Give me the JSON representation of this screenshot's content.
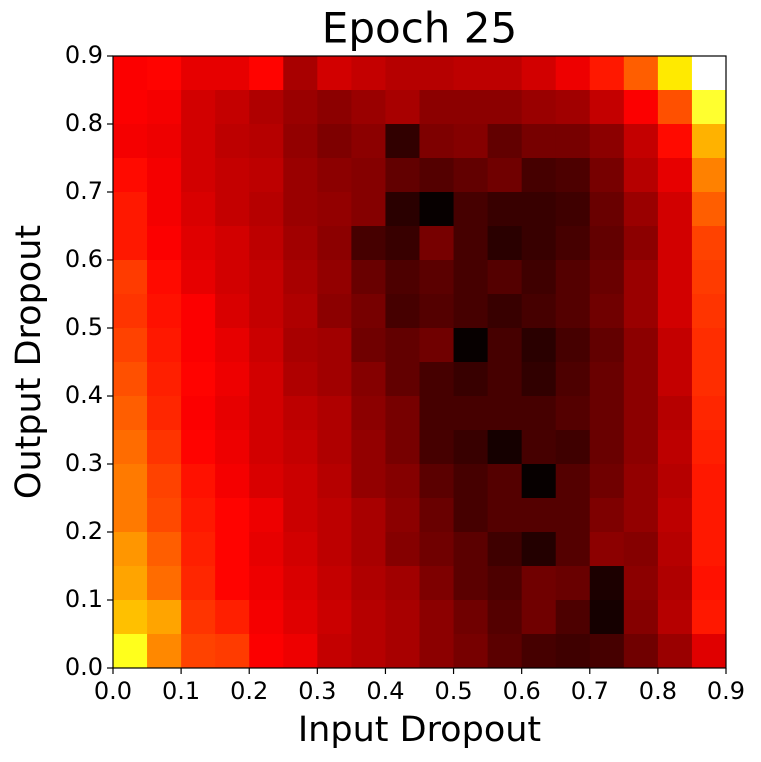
{
  "chart_data": {
    "type": "heatmap",
    "title": "Epoch 25",
    "xlabel": "Input Dropout",
    "ylabel": "Output Dropout",
    "colormap": "hot",
    "xlim": [
      0,
      0.9
    ],
    "ylim": [
      0,
      0.9
    ],
    "xticks": [
      {
        "value": 0,
        "label": "0.0"
      },
      0.1,
      0.2,
      0.3,
      0.4,
      0.5,
      0.6,
      0.7,
      0.8,
      0.9
    ],
    "yticks": [
      {
        "value": 0,
        "label": "0.0"
      },
      0.1,
      0.2,
      0.3,
      0.4,
      0.5,
      0.6,
      0.7,
      0.8,
      0.9
    ],
    "z": [
      [
        0.36,
        0.37,
        0.33,
        0.33,
        0.37,
        0.24,
        0.3,
        0.28,
        0.26,
        0.26,
        0.27,
        0.27,
        0.3,
        0.34,
        0.4,
        0.5,
        0.7,
        1.0
      ],
      [
        0.36,
        0.35,
        0.3,
        0.28,
        0.25,
        0.22,
        0.2,
        0.22,
        0.24,
        0.2,
        0.2,
        0.2,
        0.22,
        0.23,
        0.28,
        0.36,
        0.48,
        0.78
      ],
      [
        0.35,
        0.34,
        0.3,
        0.27,
        0.26,
        0.21,
        0.18,
        0.2,
        0.07,
        0.18,
        0.19,
        0.14,
        0.17,
        0.17,
        0.2,
        0.28,
        0.38,
        0.62
      ],
      [
        0.38,
        0.35,
        0.3,
        0.28,
        0.27,
        0.22,
        0.2,
        0.19,
        0.14,
        0.12,
        0.14,
        0.16,
        0.1,
        0.11,
        0.17,
        0.26,
        0.33,
        0.55
      ],
      [
        0.4,
        0.35,
        0.31,
        0.28,
        0.26,
        0.22,
        0.21,
        0.19,
        0.06,
        0.01,
        0.1,
        0.08,
        0.08,
        0.09,
        0.15,
        0.22,
        0.3,
        0.5
      ],
      [
        0.4,
        0.36,
        0.32,
        0.3,
        0.27,
        0.23,
        0.2,
        0.1,
        0.08,
        0.17,
        0.1,
        0.06,
        0.08,
        0.1,
        0.14,
        0.2,
        0.3,
        0.46
      ],
      [
        0.45,
        0.38,
        0.33,
        0.3,
        0.28,
        0.24,
        0.21,
        0.15,
        0.11,
        0.13,
        0.1,
        0.12,
        0.09,
        0.12,
        0.15,
        0.22,
        0.3,
        0.45
      ],
      [
        0.44,
        0.39,
        0.36,
        0.31,
        0.28,
        0.25,
        0.2,
        0.17,
        0.1,
        0.12,
        0.1,
        0.08,
        0.1,
        0.12,
        0.16,
        0.22,
        0.3,
        0.44
      ],
      [
        0.46,
        0.4,
        0.36,
        0.33,
        0.29,
        0.24,
        0.23,
        0.16,
        0.14,
        0.16,
        0.01,
        0.1,
        0.06,
        0.1,
        0.14,
        0.2,
        0.28,
        0.43
      ],
      [
        0.48,
        0.41,
        0.37,
        0.34,
        0.3,
        0.25,
        0.23,
        0.19,
        0.14,
        0.1,
        0.08,
        0.1,
        0.07,
        0.11,
        0.15,
        0.2,
        0.28,
        0.43
      ],
      [
        0.5,
        0.42,
        0.36,
        0.33,
        0.3,
        0.27,
        0.25,
        0.2,
        0.17,
        0.1,
        0.1,
        0.1,
        0.1,
        0.12,
        0.15,
        0.2,
        0.26,
        0.42
      ],
      [
        0.52,
        0.44,
        0.37,
        0.34,
        0.3,
        0.28,
        0.25,
        0.21,
        0.17,
        0.1,
        0.08,
        0.03,
        0.1,
        0.09,
        0.15,
        0.2,
        0.27,
        0.41
      ],
      [
        0.54,
        0.46,
        0.39,
        0.35,
        0.31,
        0.29,
        0.26,
        0.21,
        0.19,
        0.13,
        0.1,
        0.12,
        0.01,
        0.12,
        0.16,
        0.21,
        0.26,
        0.4
      ],
      [
        0.54,
        0.47,
        0.4,
        0.37,
        0.34,
        0.29,
        0.27,
        0.24,
        0.2,
        0.15,
        0.1,
        0.12,
        0.12,
        0.12,
        0.18,
        0.21,
        0.27,
        0.4
      ],
      [
        0.58,
        0.5,
        0.41,
        0.37,
        0.33,
        0.3,
        0.27,
        0.24,
        0.19,
        0.16,
        0.13,
        0.09,
        0.05,
        0.12,
        0.2,
        0.19,
        0.26,
        0.4
      ],
      [
        0.6,
        0.52,
        0.42,
        0.37,
        0.34,
        0.31,
        0.28,
        0.25,
        0.23,
        0.18,
        0.13,
        0.11,
        0.16,
        0.15,
        0.04,
        0.2,
        0.25,
        0.39
      ],
      [
        0.64,
        0.6,
        0.44,
        0.41,
        0.35,
        0.32,
        0.29,
        0.26,
        0.24,
        0.2,
        0.16,
        0.12,
        0.16,
        0.11,
        0.03,
        0.19,
        0.26,
        0.4
      ],
      [
        0.76,
        0.56,
        0.46,
        0.45,
        0.36,
        0.34,
        0.28,
        0.26,
        0.24,
        0.2,
        0.17,
        0.13,
        0.1,
        0.09,
        0.1,
        0.16,
        0.22,
        0.32
      ]
    ]
  }
}
